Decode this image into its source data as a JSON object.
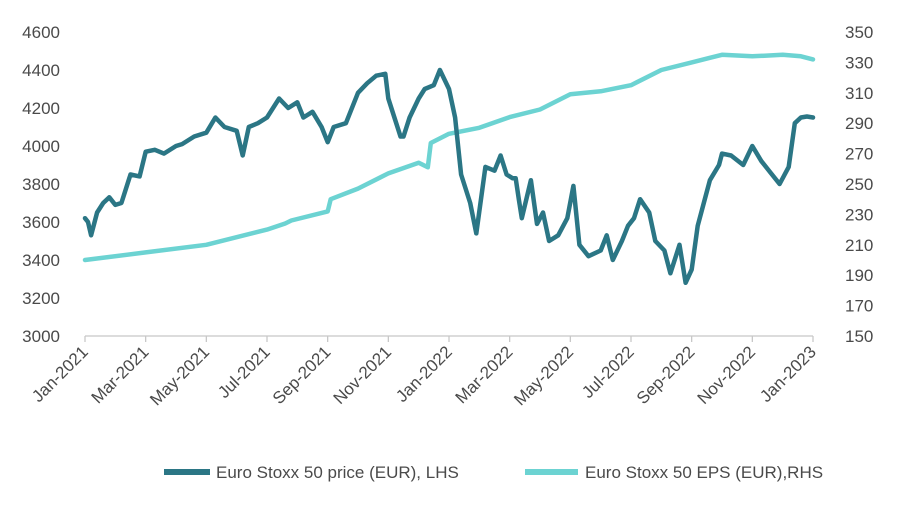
{
  "chart_data": {
    "type": "line",
    "title": "",
    "xlabel": "",
    "ylabel_left": "",
    "ylabel_right": "",
    "grid": false,
    "legend_position": "bottom",
    "x_ticks": [
      "Jan-2021",
      "Mar-2021",
      "May-2021",
      "Jul-2021",
      "Sep-2021",
      "Nov-2021",
      "Jan-2022",
      "Mar-2022",
      "May-2022",
      "Jul-2022",
      "Sep-2022",
      "Nov-2022",
      "Jan-2023"
    ],
    "y_left": {
      "min": 3000,
      "max": 4600,
      "ticks": [
        "3000",
        "3200",
        "3400",
        "3600",
        "3800",
        "4000",
        "4200",
        "4400",
        "4600"
      ]
    },
    "y_right": {
      "min": 150,
      "max": 350,
      "ticks": [
        "150",
        "170",
        "190",
        "210",
        "230",
        "250",
        "270",
        "290",
        "310",
        "330",
        "350"
      ]
    },
    "series": [
      {
        "name": "Euro Stoxx 50 price (EUR), LHS",
        "axis": "left",
        "color": "#2b7685",
        "x": [
          0,
          0.05,
          0.1,
          0.2,
          0.3,
          0.4,
          0.5,
          0.6,
          0.75,
          0.9,
          1.0,
          1.15,
          1.3,
          1.5,
          1.6,
          1.8,
          2.0,
          2.15,
          2.3,
          2.5,
          2.6,
          2.7,
          2.85,
          3.0,
          3.2,
          3.35,
          3.5,
          3.6,
          3.75,
          3.9,
          4.0,
          4.1,
          4.3,
          4.5,
          4.65,
          4.8,
          4.95,
          5.0,
          5.1,
          5.2,
          5.25,
          5.35,
          5.5,
          5.6,
          5.75,
          5.85,
          6.0,
          6.1,
          6.2,
          6.35,
          6.45,
          6.6,
          6.75,
          6.85,
          6.95,
          7.05,
          7.1,
          7.15,
          7.2,
          7.35,
          7.45,
          7.55,
          7.65,
          7.8,
          7.95,
          8.05,
          8.15,
          8.3,
          8.5,
          8.6,
          8.7,
          8.85,
          8.95,
          9.05,
          9.15,
          9.3,
          9.4,
          9.55,
          9.65,
          9.8,
          9.9,
          10.0,
          10.1,
          10.2,
          10.3,
          10.45,
          10.5,
          10.65,
          10.85,
          11.0,
          11.15,
          11.3,
          11.45,
          11.6,
          11.7,
          11.8,
          11.9,
          12.0
        ],
        "y": [
          3620,
          3600,
          3530,
          3650,
          3700,
          3730,
          3690,
          3700,
          3850,
          3840,
          3970,
          3980,
          3960,
          4000,
          4010,
          4050,
          4070,
          4150,
          4100,
          4080,
          3950,
          4100,
          4120,
          4150,
          4250,
          4200,
          4230,
          4150,
          4180,
          4100,
          4020,
          4100,
          4120,
          4280,
          4330,
          4370,
          4380,
          4250,
          4150,
          4050,
          4050,
          4150,
          4250,
          4300,
          4320,
          4400,
          4300,
          4150,
          3850,
          3700,
          3540,
          3890,
          3870,
          3950,
          3850,
          3830,
          3830,
          3720,
          3620,
          3820,
          3590,
          3650,
          3500,
          3530,
          3620,
          3790,
          3480,
          3420,
          3450,
          3530,
          3400,
          3500,
          3580,
          3620,
          3720,
          3650,
          3500,
          3450,
          3330,
          3480,
          3280,
          3350,
          3580,
          3700,
          3820,
          3900,
          3960,
          3950,
          3900,
          4000,
          3920,
          3860,
          3800,
          3890,
          4120,
          4150,
          4155,
          4150
        ]
      },
      {
        "name": "Euro Stoxx 50 EPS (EUR),RHS",
        "axis": "right",
        "color": "#6cd3d2",
        "x": [
          0,
          1,
          2,
          3,
          3.3,
          3.4,
          4.0,
          4.05,
          4.5,
          5.0,
          5.5,
          5.65,
          5.7,
          6.0,
          6.5,
          7.0,
          7.5,
          8.0,
          8.5,
          9.0,
          9.5,
          10.0,
          10.3,
          10.5,
          11.0,
          11.5,
          11.8,
          12.0
        ],
        "y": [
          200,
          205,
          210,
          220,
          224,
          226,
          232,
          240,
          247,
          257,
          264,
          261,
          277,
          283,
          287,
          294,
          299,
          309,
          311,
          315,
          325,
          330,
          333,
          335,
          334,
          335,
          334,
          332
        ]
      }
    ]
  }
}
